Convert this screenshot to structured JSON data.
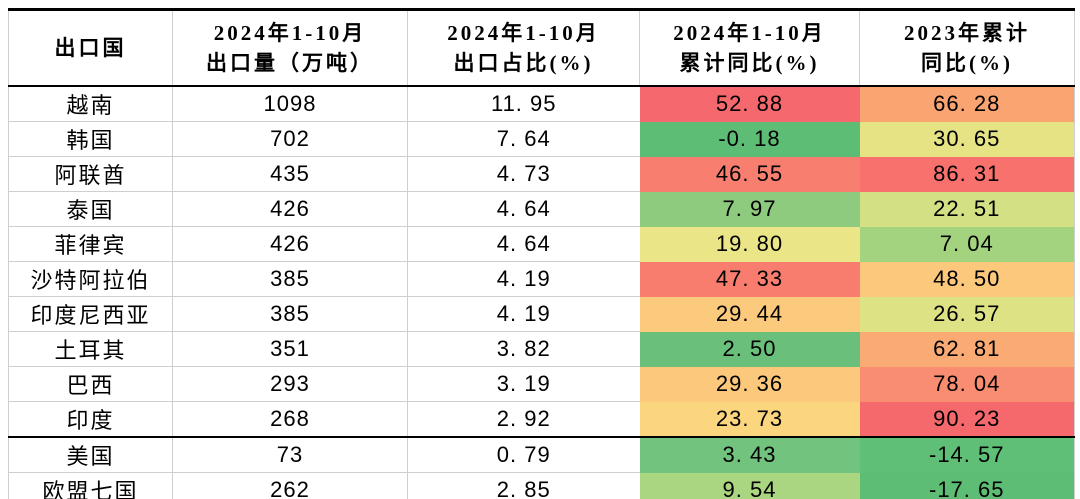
{
  "table": {
    "headers": [
      {
        "text": "出口国"
      },
      {
        "text": "2024年1-10月\n出口量（万吨）"
      },
      {
        "text": "2024年1-10月\n出口占比(%)"
      },
      {
        "text": "2024年1-10月\n累计同比(%)"
      },
      {
        "text": "2023年累计\n同比(%)"
      }
    ],
    "rows": [
      {
        "country": "越南",
        "volume": "1098",
        "share": "11. 95",
        "yoy_2024": {
          "text": "52. 88",
          "bg": "#F5686D"
        },
        "yoy_2023": {
          "text": "66. 28",
          "bg": "#FAA472"
        },
        "group_start": false
      },
      {
        "country": "韩国",
        "volume": "702",
        "share": "7. 64",
        "yoy_2024": {
          "text": "-0. 18",
          "bg": "#5DBD75"
        },
        "yoy_2023": {
          "text": "30. 65",
          "bg": "#E6E385"
        },
        "group_start": false
      },
      {
        "country": "阿联酋",
        "volume": "435",
        "share": "4. 73",
        "yoy_2024": {
          "text": "46. 55",
          "bg": "#F87F70"
        },
        "yoy_2023": {
          "text": "86. 31",
          "bg": "#F8716C"
        },
        "group_start": false
      },
      {
        "country": "泰国",
        "volume": "426",
        "share": "4. 64",
        "yoy_2024": {
          "text": "7. 97",
          "bg": "#8ECB7E"
        },
        "yoy_2023": {
          "text": "22. 51",
          "bg": "#D3E083"
        },
        "group_start": false
      },
      {
        "country": "菲律宾",
        "volume": "426",
        "share": "4. 64",
        "yoy_2024": {
          "text": "19. 80",
          "bg": "#EAE687"
        },
        "yoy_2023": {
          "text": "7. 04",
          "bg": "#A3D37E"
        },
        "group_start": false
      },
      {
        "country": "沙特阿拉伯",
        "volume": "385",
        "share": "4. 19",
        "yoy_2024": {
          "text": "47. 33",
          "bg": "#F87D6E"
        },
        "yoy_2023": {
          "text": "48. 50",
          "bg": "#FCC97C"
        },
        "group_start": false
      },
      {
        "country": "印度尼西亚",
        "volume": "385",
        "share": "4. 19",
        "yoy_2024": {
          "text": "29. 44",
          "bg": "#FCCA7D"
        },
        "yoy_2023": {
          "text": "26. 57",
          "bg": "#DDE385"
        },
        "group_start": false
      },
      {
        "country": "土耳其",
        "volume": "351",
        "share": "3. 82",
        "yoy_2024": {
          "text": "2. 50",
          "bg": "#6AC07A"
        },
        "yoy_2023": {
          "text": "62. 81",
          "bg": "#FAAA73"
        },
        "group_start": false
      },
      {
        "country": "巴西",
        "volume": "293",
        "share": "3. 19",
        "yoy_2024": {
          "text": "29. 36",
          "bg": "#FBC87C"
        },
        "yoy_2023": {
          "text": "78. 04",
          "bg": "#F98D72"
        },
        "group_start": false
      },
      {
        "country": "印度",
        "volume": "268",
        "share": "2. 92",
        "yoy_2024": {
          "text": "23. 73",
          "bg": "#FBD67E"
        },
        "yoy_2023": {
          "text": "90. 23",
          "bg": "#F5696D"
        },
        "group_start": false
      },
      {
        "country": "美国",
        "volume": "73",
        "share": "0. 79",
        "yoy_2024": {
          "text": "3. 43",
          "bg": "#71C37E"
        },
        "yoy_2023": {
          "text": "-14. 57",
          "bg": "#60BF77"
        },
        "group_start": true
      },
      {
        "country": "欧盟七国",
        "volume": "262",
        "share": "2. 85",
        "yoy_2024": {
          "text": "9. 54",
          "bg": "#AAD581"
        },
        "yoy_2023": {
          "text": "-17. 65",
          "bg": "#5DBD75"
        },
        "group_start": false
      }
    ]
  },
  "chart_data": {
    "type": "table",
    "title": "",
    "columns": [
      "出口国",
      "2024年1-10月出口量（万吨）",
      "2024年1-10月出口占比(%)",
      "2024年1-10月累计同比(%)",
      "2023年累计同比(%)"
    ],
    "rows": [
      [
        "越南",
        1098,
        11.95,
        52.88,
        66.28
      ],
      [
        "韩国",
        702,
        7.64,
        -0.18,
        30.65
      ],
      [
        "阿联酋",
        435,
        4.73,
        46.55,
        86.31
      ],
      [
        "泰国",
        426,
        4.64,
        7.97,
        22.51
      ],
      [
        "菲律宾",
        426,
        4.64,
        19.8,
        7.04
      ],
      [
        "沙特阿拉伯",
        385,
        4.19,
        47.33,
        48.5
      ],
      [
        "印度尼西亚",
        385,
        4.19,
        29.44,
        26.57
      ],
      [
        "土耳其",
        351,
        3.82,
        2.5,
        62.81
      ],
      [
        "巴西",
        293,
        3.19,
        29.36,
        78.04
      ],
      [
        "印度",
        268,
        2.92,
        23.73,
        90.23
      ],
      [
        "美国",
        73,
        0.79,
        3.43,
        -14.57
      ],
      [
        "欧盟七国",
        262,
        2.85,
        9.54,
        -17.65
      ]
    ],
    "heatmap_columns": [
      "2024年1-10月累计同比(%)",
      "2023年累计同比(%)"
    ],
    "heatmap_scale": {
      "low": "#63BE7B",
      "mid": "#FFEB84",
      "high": "#F8696B"
    },
    "group_separator_before_row_index": 10,
    "grid": true,
    "legend_position": "none"
  }
}
